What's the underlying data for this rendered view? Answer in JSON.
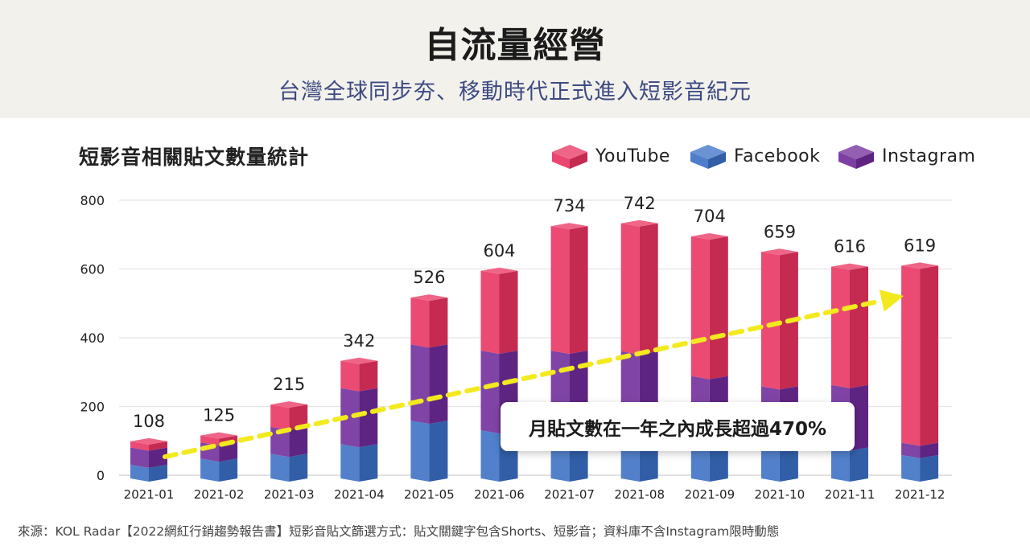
{
  "header": {
    "title": "自流量經營",
    "subtitle": "台灣全球同步夯、移動時代正式進入短影音紀元"
  },
  "chart_data": {
    "type": "bar",
    "stacked": true,
    "title": "短影音相關貼文數量統計",
    "categories": [
      "2021-01",
      "2021-02",
      "2021-03",
      "2021-04",
      "2021-05",
      "2021-06",
      "2021-07",
      "2021-08",
      "2021-09",
      "2021-10",
      "2021-11",
      "2021-12"
    ],
    "series": [
      {
        "name": "Facebook",
        "color": "#3a6fc4",
        "values": [
          40,
          58,
          72,
          100,
          168,
          140,
          120,
          130,
          110,
          110,
          90,
          68
        ]
      },
      {
        "name": "Instagram",
        "color": "#6e2a99",
        "values": [
          50,
          47,
          78,
          163,
          222,
          232,
          252,
          240,
          188,
          158,
          182,
          36
        ]
      },
      {
        "name": "YouTube",
        "color": "#e8315f",
        "values": [
          18,
          20,
          65,
          79,
          136,
          232,
          362,
          372,
          406,
          391,
          344,
          515
        ]
      }
    ],
    "totals": [
      108,
      125,
      215,
      342,
      526,
      604,
      734,
      742,
      704,
      659,
      616,
      619
    ],
    "y_ticks": [
      0,
      200,
      400,
      600,
      800
    ],
    "ylim": [
      0,
      800
    ],
    "grid": true,
    "legend_position": "top-right",
    "annotation": "月貼文數在一年之內成長超過470%",
    "trend_arrow": {
      "from_category": "2021-01",
      "to_category": "2021-12",
      "color": "#f2ea1f"
    }
  },
  "footnote": "來源：KOL Radar【2022網紅行銷趨勢報告書】短影音貼文篩選方式：貼文關鍵字包含Shorts、短影音；資料庫不含Instagram限時動態"
}
